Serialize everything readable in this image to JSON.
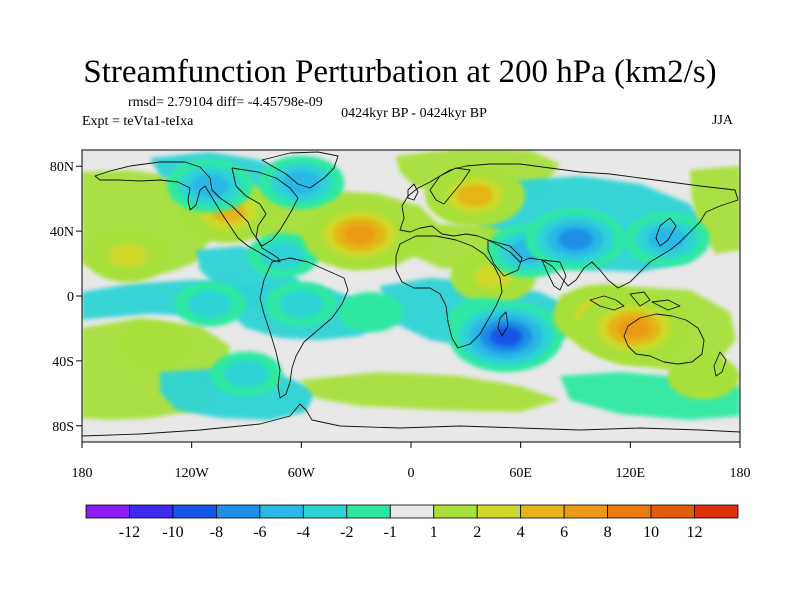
{
  "figure": {
    "title": "Streamfunction Perturbation at 200 hPa (km2/s)",
    "stats_text": "rmsd= 2.79104 diff= -4.45798e-09",
    "experiment_text": "Expt = teVta1-teIxa",
    "center_text": "0424kyr BP - 0424kyr BP",
    "season": "JJA"
  },
  "map": {
    "projection": "cylindrical-equidistant",
    "lon_range": [
      -180,
      180
    ],
    "lat_range": [
      -90,
      90
    ],
    "lat_labels": [
      {
        "lat": 80,
        "text": "80N"
      },
      {
        "lat": 40,
        "text": "40N"
      },
      {
        "lat": 0,
        "text": "0"
      },
      {
        "lat": -40,
        "text": "40S"
      },
      {
        "lat": -80,
        "text": "80S"
      }
    ],
    "lon_labels": [
      {
        "lon": -180,
        "text": "180"
      },
      {
        "lon": -120,
        "text": "120W"
      },
      {
        "lon": -60,
        "text": "60W"
      },
      {
        "lon": 0,
        "text": "0"
      },
      {
        "lon": 60,
        "text": "60E"
      },
      {
        "lon": 120,
        "text": "120E"
      },
      {
        "lon": 180,
        "text": "180"
      }
    ]
  },
  "colorbar": {
    "colors": [
      "#8a1df2",
      "#3d2af0",
      "#1457e6",
      "#1f8fe6",
      "#2ab8e6",
      "#2ed3d6",
      "#2ee8a2",
      "#e8e8e8",
      "#a7e03a",
      "#cfd92b",
      "#e5b419",
      "#eb9a12",
      "#ea7a0d",
      "#e45a0a",
      "#e4300a"
    ],
    "labels": [
      "-12",
      "-10",
      "-8",
      "-6",
      "-4",
      "-2",
      "-1",
      "1",
      "2",
      "4",
      "6",
      "8",
      "10",
      "12"
    ]
  },
  "chart_data": {
    "type": "contour-map",
    "variable": "streamfunction perturbation",
    "level": "200 hPa",
    "units": "km2/s",
    "contour_levels": [
      -12,
      -10,
      -8,
      -6,
      -4,
      -2,
      -1,
      1,
      2,
      4,
      6,
      8,
      10,
      12
    ],
    "features": [
      {
        "lon": -155,
        "lat": 25,
        "value": 4
      },
      {
        "lon": -140,
        "lat": -30,
        "value": 2
      },
      {
        "lon": -100,
        "lat": 52,
        "value": 6
      },
      {
        "lon": -110,
        "lat": 68,
        "value": -4
      },
      {
        "lon": -60,
        "lat": 70,
        "value": -4
      },
      {
        "lon": -70,
        "lat": 25,
        "value": -2
      },
      {
        "lon": -28,
        "lat": 38,
        "value": 8
      },
      {
        "lon": -22,
        "lat": -10,
        "value": -1
      },
      {
        "lon": -60,
        "lat": -5,
        "value": -2
      },
      {
        "lon": -110,
        "lat": -5,
        "value": -2
      },
      {
        "lon": -90,
        "lat": -48,
        "value": -2
      },
      {
        "lon": 35,
        "lat": 62,
        "value": 6
      },
      {
        "lon": 45,
        "lat": 12,
        "value": 4
      },
      {
        "lon": 65,
        "lat": 28,
        "value": -4
      },
      {
        "lon": 90,
        "lat": 35,
        "value": -6
      },
      {
        "lon": 40,
        "lat": -15,
        "value": -2
      },
      {
        "lon": 52,
        "lat": -25,
        "value": -8
      },
      {
        "lon": 105,
        "lat": -12,
        "value": 6
      },
      {
        "lon": 122,
        "lat": -20,
        "value": 8
      },
      {
        "lon": 140,
        "lat": 35,
        "value": -4
      },
      {
        "lon": 160,
        "lat": -50,
        "value": 2
      }
    ]
  }
}
